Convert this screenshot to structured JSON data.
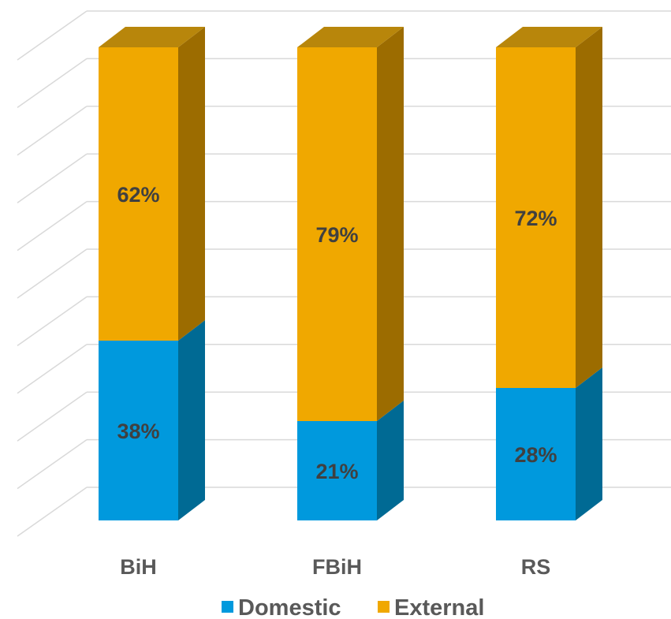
{
  "chart_data": {
    "type": "bar",
    "stacked": true,
    "style": "3d-stacked-column-100-percent",
    "categories": [
      "BiH",
      "FBiH",
      "RS"
    ],
    "series": [
      {
        "name": "Domestic",
        "values": [
          38,
          21,
          28
        ],
        "labels": [
          "38%",
          "21%",
          "28%"
        ],
        "color": "#0099dd",
        "side_color": "#006a94",
        "top_color": "#0088c4"
      },
      {
        "name": "External",
        "values": [
          62,
          79,
          72
        ],
        "labels": [
          "62%",
          "79%",
          "72%"
        ],
        "color": "#f0a800",
        "side_color": "#9c6c00",
        "top_color": "#b8860b"
      }
    ],
    "ylim": [
      0,
      100
    ],
    "grid": true,
    "grid_color": "#d9d9d9",
    "legend_position": "bottom",
    "title": "",
    "xlabel": "",
    "ylabel": ""
  }
}
